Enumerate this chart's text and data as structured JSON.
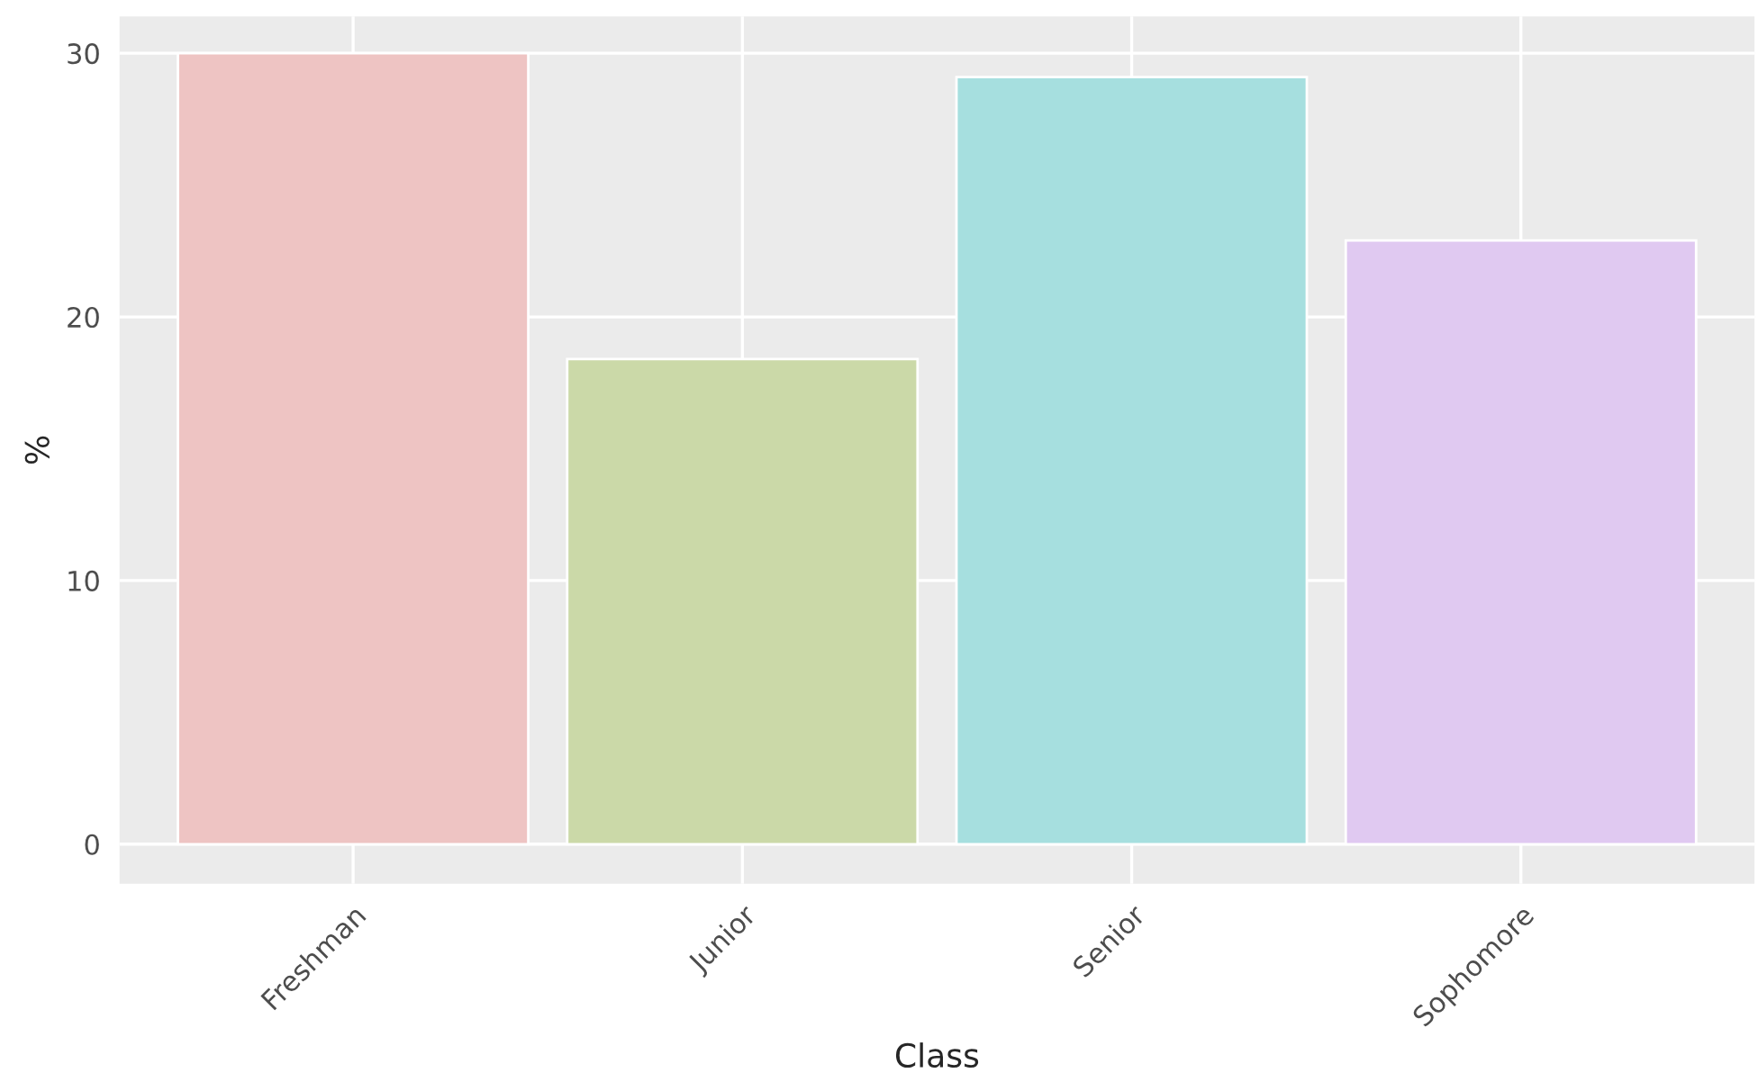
{
  "chart_data": {
    "type": "bar",
    "xlabel": "Class",
    "ylabel": "%",
    "categories": [
      "Freshman",
      "Junior",
      "Senior",
      "Sophomore"
    ],
    "values": [
      30.0,
      18.4,
      29.1,
      22.9
    ],
    "colors": [
      "#eec4c3",
      "#cbd9a8",
      "#a6dfdf",
      "#e0c9f1"
    ],
    "ylim": [
      -1.5,
      31.4
    ],
    "yticks": [
      0,
      10,
      20,
      30
    ],
    "grid": true,
    "legend": false
  }
}
